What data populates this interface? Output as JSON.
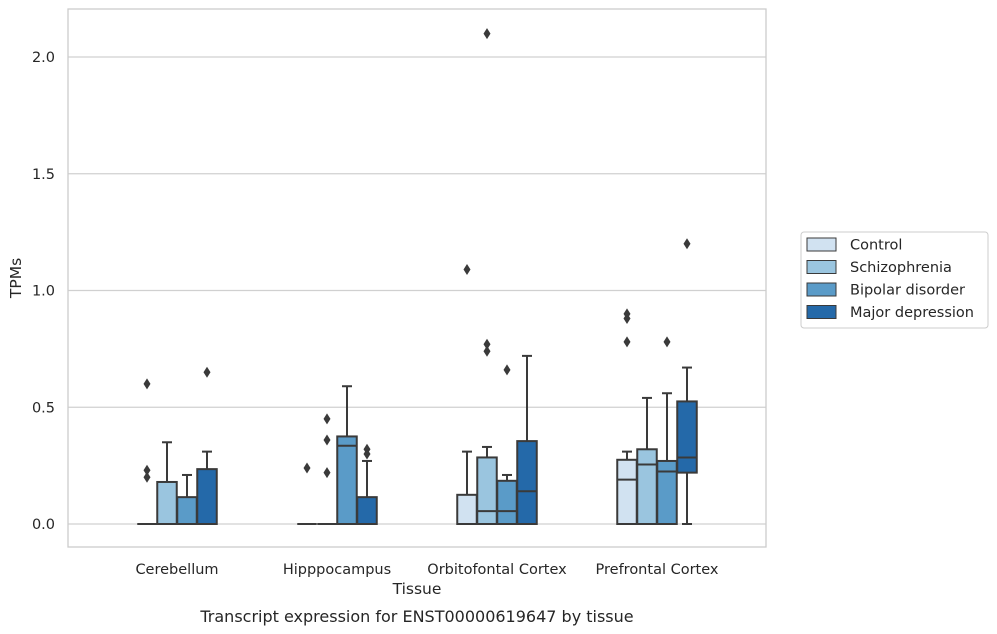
{
  "caption": "Transcript expression for ENST00000619647 by tissue",
  "chart_data": {
    "type": "boxplot",
    "xlabel": "Tissue",
    "ylabel": "TPMs",
    "ylim": [
      -0.1,
      2.22
    ],
    "yticks": [
      0.0,
      0.5,
      1.0,
      1.5,
      2.0
    ],
    "ytick_labels": [
      "0.0",
      "0.5",
      "1.0",
      "1.5",
      "2.0"
    ],
    "grid": "horizontal",
    "legend_position": "right-center",
    "categories": [
      "Cerebellum",
      "Hipppocampus",
      "Orbitofontal Cortex",
      "Prefrontal Cortex"
    ],
    "series": [
      {
        "name": "Control",
        "color": "#d1e2f1",
        "boxes": [
          {
            "whisker_low": 0,
            "q1": 0,
            "median": 0,
            "q3": 0,
            "whisker_high": 0,
            "outliers": [
              0.2,
              0.23,
              0.6
            ]
          },
          {
            "whisker_low": 0,
            "q1": 0,
            "median": 0,
            "q3": 0,
            "whisker_high": 0,
            "outliers": [
              0.24
            ]
          },
          {
            "whisker_low": 0,
            "q1": 0,
            "median": 0,
            "q3": 0.125,
            "whisker_high": 0.31,
            "outliers": [
              1.09
            ]
          },
          {
            "whisker_low": 0,
            "q1": 0,
            "median": 0.19,
            "q3": 0.275,
            "whisker_high": 0.31,
            "outliers": [
              0.78,
              0.88,
              0.9
            ]
          }
        ]
      },
      {
        "name": "Schizophrenia",
        "color": "#9ac5df",
        "boxes": [
          {
            "whisker_low": 0,
            "q1": 0,
            "median": 0,
            "q3": 0.18,
            "whisker_high": 0.35,
            "outliers": []
          },
          {
            "whisker_low": 0,
            "q1": 0,
            "median": 0,
            "q3": 0,
            "whisker_high": 0,
            "outliers": [
              0.22,
              0.36,
              0.45
            ]
          },
          {
            "whisker_low": 0,
            "q1": 0,
            "median": 0.055,
            "q3": 0.285,
            "whisker_high": 0.33,
            "outliers": [
              0.74,
              0.77,
              2.1
            ]
          },
          {
            "whisker_low": 0,
            "q1": 0,
            "median": 0.255,
            "q3": 0.32,
            "whisker_high": 0.54,
            "outliers": []
          }
        ]
      },
      {
        "name": "Bipolar disorder",
        "color": "#5a9bc8",
        "boxes": [
          {
            "whisker_low": 0,
            "q1": 0,
            "median": 0,
            "q3": 0.115,
            "whisker_high": 0.21,
            "outliers": []
          },
          {
            "whisker_low": 0,
            "q1": 0,
            "median": 0.335,
            "q3": 0.375,
            "whisker_high": 0.59,
            "outliers": []
          },
          {
            "whisker_low": 0,
            "q1": 0,
            "median": 0.055,
            "q3": 0.185,
            "whisker_high": 0.21,
            "outliers": [
              0.66
            ]
          },
          {
            "whisker_low": 0,
            "q1": 0,
            "median": 0.225,
            "q3": 0.27,
            "whisker_high": 0.56,
            "outliers": [
              0.78
            ]
          }
        ]
      },
      {
        "name": "Major depression",
        "color": "#2469a9",
        "boxes": [
          {
            "whisker_low": 0,
            "q1": 0,
            "median": 0,
            "q3": 0.235,
            "whisker_high": 0.31,
            "outliers": [
              0.65
            ]
          },
          {
            "whisker_low": 0,
            "q1": 0,
            "median": 0,
            "q3": 0.115,
            "whisker_high": 0.27,
            "outliers": [
              0.3,
              0.32
            ]
          },
          {
            "whisker_low": 0,
            "q1": 0,
            "median": 0.14,
            "q3": 0.355,
            "whisker_high": 0.72,
            "outliers": []
          },
          {
            "whisker_low": 0,
            "q1": 0.22,
            "median": 0.285,
            "q3": 0.525,
            "whisker_high": 0.67,
            "outliers": [
              1.2
            ]
          }
        ]
      }
    ]
  }
}
